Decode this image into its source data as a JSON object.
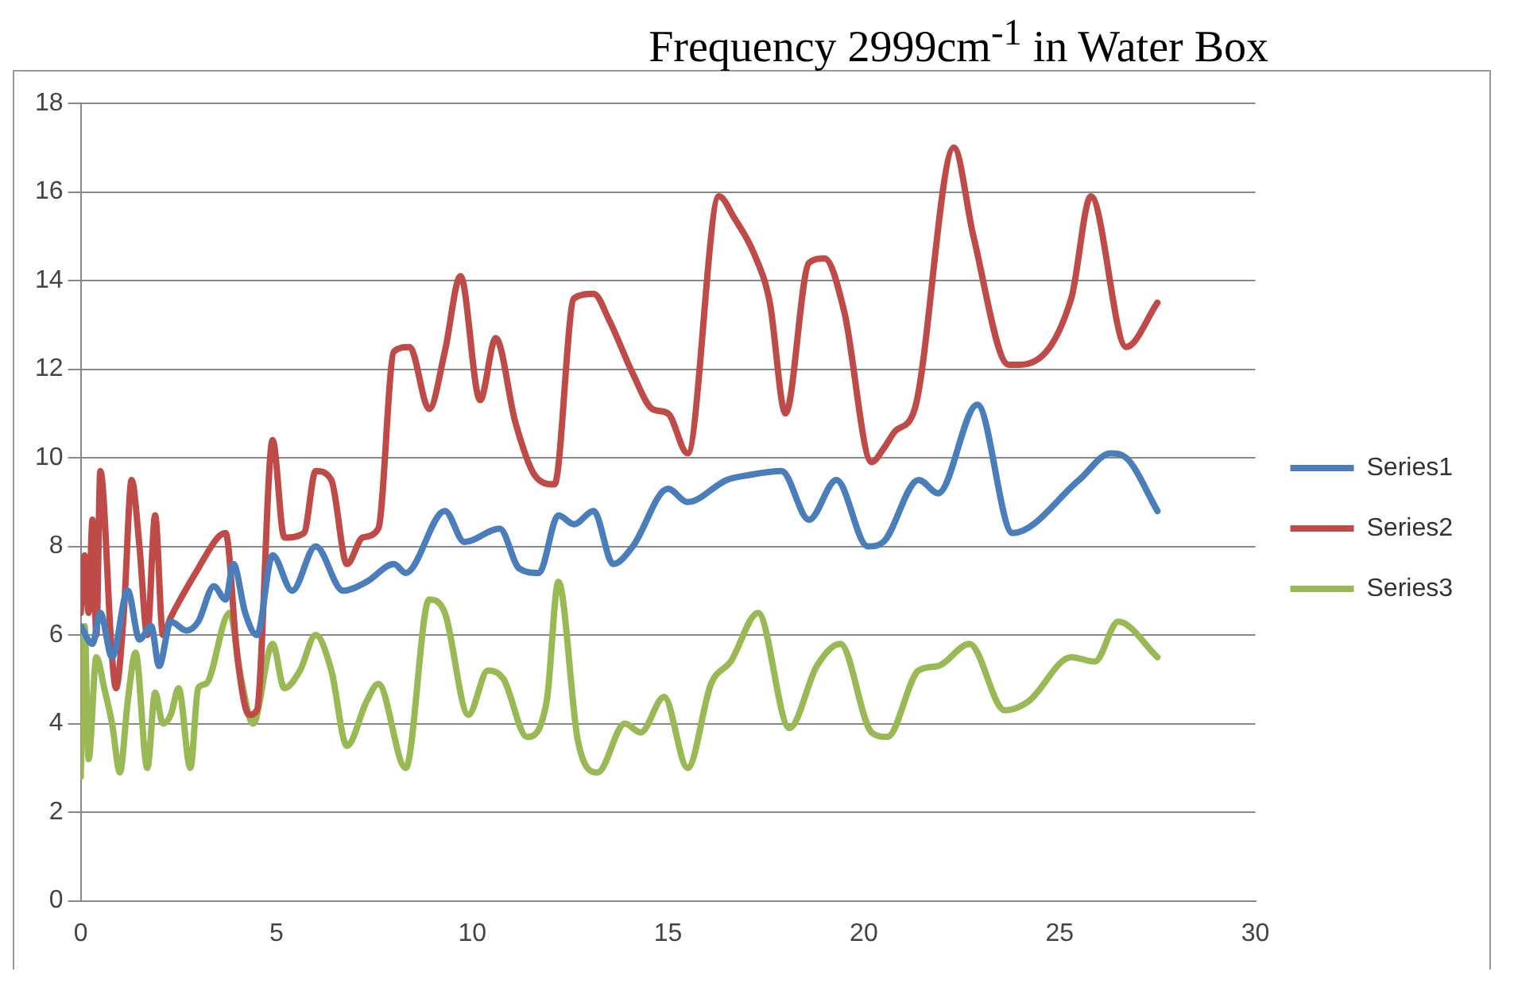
{
  "chart_data": {
    "type": "line",
    "title": "Frequency 2999cm$^{-1}$ in Water Box",
    "xlim": [
      0,
      30
    ],
    "xticks": [
      0,
      5,
      10,
      15,
      20,
      25,
      30
    ],
    "ylim": [
      0,
      18
    ],
    "yticks": [
      0,
      2,
      4,
      6,
      8,
      10,
      12,
      14,
      16,
      18
    ],
    "grid": "y",
    "legend": "right",
    "marker": "none",
    "line_style": "solid",
    "series": [
      {
        "name": "Series1",
        "color": "#4a7ebb",
        "x": [
          0,
          0.3,
          0.5,
          0.8,
          1.2,
          1.5,
          1.8,
          2.0,
          2.3,
          2.7,
          3.0,
          3.4,
          3.7,
          3.9,
          4.2,
          4.5,
          4.9,
          5.4,
          6.0,
          6.7,
          7.3,
          8.0,
          8.3,
          9.3,
          9.8,
          10.7,
          11.2,
          11.7,
          12.2,
          12.6,
          13.1,
          13.6,
          14.1,
          15.0,
          15.5,
          16.5,
          17.0,
          17.9,
          18.6,
          19.3,
          20.1,
          20.5,
          21.4,
          21.9,
          22.9,
          23.8,
          25.5,
          26.3,
          26.7,
          27.5
        ],
        "values": [
          6.2,
          5.8,
          6.5,
          5.5,
          7.0,
          5.9,
          6.2,
          5.3,
          6.3,
          6.1,
          6.3,
          7.1,
          6.8,
          7.6,
          6.5,
          6.0,
          7.8,
          7.0,
          8.0,
          7.0,
          7.2,
          7.6,
          7.4,
          8.8,
          8.1,
          8.4,
          7.5,
          7.4,
          8.7,
          8.5,
          8.8,
          7.6,
          8.0,
          9.3,
          9.0,
          9.5,
          9.6,
          9.7,
          8.6,
          9.5,
          8.0,
          8.1,
          9.5,
          9.2,
          11.2,
          8.3,
          9.5,
          10.1,
          10.0,
          8.8
        ]
      },
      {
        "name": "Series2",
        "color": "#be4b48",
        "x": [
          0,
          0.1,
          0.2,
          0.3,
          0.4,
          0.5,
          0.8,
          0.9,
          1.1,
          1.3,
          1.5,
          1.7,
          1.9,
          2.1,
          2.3,
          3.0,
          3.5,
          3.7,
          4.0,
          4.3,
          4.5,
          4.9,
          5.2,
          5.7,
          6.0,
          6.4,
          6.8,
          7.2,
          7.6,
          8.0,
          8.4,
          8.9,
          9.3,
          9.7,
          10.2,
          10.6,
          11.1,
          11.6,
          12.1,
          12.6,
          13.1,
          13.5,
          14.1,
          14.6,
          15.0,
          15.5,
          16.3,
          16.7,
          17.2,
          17.6,
          18.0,
          18.6,
          19.0,
          19.5,
          20.2,
          20.5,
          20.8,
          21.3,
          22.3,
          22.8,
          23.7,
          24.0,
          25.3,
          25.8,
          26.7,
          27.5
        ],
        "values": [
          6.5,
          7.8,
          6.5,
          8.6,
          6.0,
          9.7,
          5.5,
          4.8,
          6.5,
          9.5,
          8.0,
          6.0,
          8.7,
          6.0,
          6.4,
          7.5,
          8.2,
          8.3,
          5.5,
          4.2,
          4.3,
          10.4,
          8.2,
          8.3,
          9.7,
          9.5,
          7.6,
          8.2,
          8.4,
          12.4,
          12.5,
          11.1,
          12.4,
          14.1,
          11.3,
          12.7,
          10.8,
          9.6,
          9.4,
          13.6,
          13.7,
          13.1,
          11.9,
          11.1,
          11.0,
          10.1,
          15.9,
          15.4,
          14.6,
          13.5,
          11.0,
          14.4,
          14.5,
          13.3,
          9.9,
          10.2,
          10.6,
          11.1,
          17.0,
          15.0,
          12.1,
          12.1,
          13.6,
          15.9,
          12.5,
          13.5
        ]
      },
      {
        "name": "Series3",
        "color": "#98b954",
        "x": [
          0,
          0.1,
          0.2,
          0.4,
          0.6,
          0.8,
          1.0,
          1.2,
          1.4,
          1.7,
          1.9,
          2.1,
          2.3,
          2.5,
          2.8,
          3.0,
          3.2,
          3.8,
          4.1,
          4.4,
          4.9,
          5.2,
          5.6,
          6.0,
          6.4,
          6.8,
          7.3,
          7.6,
          8.3,
          8.9,
          9.3,
          9.9,
          10.4,
          10.8,
          11.4,
          11.9,
          12.2,
          12.7,
          13.2,
          13.9,
          14.3,
          14.9,
          15.5,
          16.1,
          16.6,
          17.3,
          18.1,
          18.8,
          19.4,
          20.2,
          20.6,
          21.4,
          21.9,
          22.7,
          23.6,
          24.2,
          25.3,
          25.9,
          26.5,
          27.5
        ],
        "values": [
          2.8,
          6.2,
          3.2,
          5.5,
          4.8,
          4.0,
          2.9,
          4.5,
          5.6,
          3.0,
          4.7,
          4.0,
          4.2,
          4.8,
          3.0,
          4.8,
          4.9,
          6.5,
          5.0,
          4.0,
          5.8,
          4.8,
          5.2,
          6.0,
          5.2,
          3.5,
          4.5,
          4.9,
          3.0,
          6.8,
          6.5,
          4.2,
          5.2,
          5.0,
          3.7,
          4.5,
          7.2,
          3.6,
          2.9,
          4.0,
          3.8,
          4.6,
          3.0,
          4.9,
          5.4,
          6.5,
          3.9,
          5.3,
          5.8,
          3.8,
          3.7,
          5.2,
          5.3,
          5.8,
          4.3,
          4.5,
          5.5,
          5.4,
          6.3,
          5.5
        ]
      }
    ]
  }
}
